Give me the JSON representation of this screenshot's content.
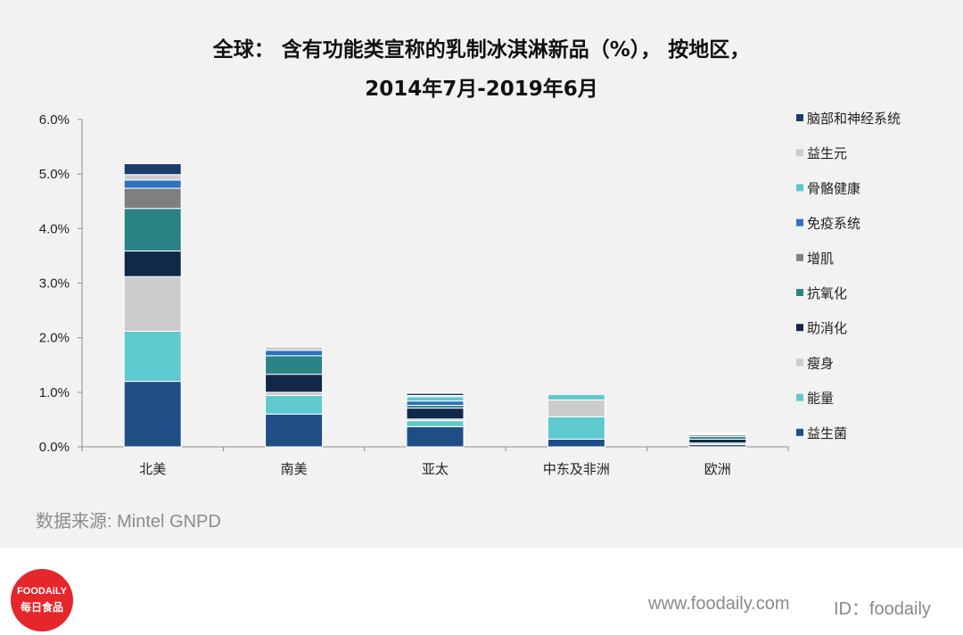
{
  "chart_data": {
    "type": "bar",
    "stacked": true,
    "title": "全球： 含有功能类宣称的乳制冰淇淋新品（%）， 按地区，",
    "subtitle": "2014年7月-2019年6月",
    "xlabel": "",
    "ylabel": "",
    "ylim": [
      0,
      6
    ],
    "yticks": [
      "0.0%",
      "1.0%",
      "2.0%",
      "3.0%",
      "4.0%",
      "5.0%",
      "6.0%"
    ],
    "categories": [
      "北美",
      "南美",
      "亚太",
      "中东及非洲",
      "欧洲"
    ],
    "series": [
      {
        "name": "益生菌",
        "color": "#1f4e87",
        "values": [
          1.2,
          0.6,
          0.37,
          0.14,
          0.04
        ]
      },
      {
        "name": "能量",
        "color": "#5ec9cf",
        "values": [
          0.92,
          0.34,
          0.11,
          0.41,
          0.0
        ]
      },
      {
        "name": "瘦身",
        "color": "#cccccc",
        "values": [
          1.0,
          0.06,
          0.03,
          0.31,
          0.03
        ]
      },
      {
        "name": "助消化",
        "color": "#12284a",
        "values": [
          0.47,
          0.33,
          0.2,
          0.0,
          0.07
        ]
      },
      {
        "name": "抗氧化",
        "color": "#2a8385",
        "values": [
          0.78,
          0.34,
          0.05,
          0.0,
          0.05
        ]
      },
      {
        "name": "增肌",
        "color": "#7f7f7f",
        "values": [
          0.37,
          0.0,
          0.0,
          0.0,
          0.03
        ]
      },
      {
        "name": "免疫系统",
        "color": "#2e72c0",
        "values": [
          0.15,
          0.1,
          0.08,
          0.0,
          0.0
        ]
      },
      {
        "name": "骨骼健康",
        "color": "#5ec9cf",
        "values": [
          0.0,
          0.0,
          0.08,
          0.1,
          0.0
        ]
      },
      {
        "name": "益生元",
        "color": "#cccccc",
        "values": [
          0.1,
          0.06,
          0.02,
          0.0,
          0.02
        ]
      },
      {
        "name": "脑部和神经系统",
        "color": "#1b3d6d",
        "values": [
          0.2,
          0.0,
          0.04,
          0.0,
          0.01
        ]
      }
    ],
    "legend_position": "right",
    "grid": false
  },
  "source_note": "数据来源: Mintel GNPD",
  "footer": {
    "website": "www.foodaily.com",
    "id_label": "ID：foodaily",
    "logo_brand": "FOODAiLY",
    "logo_cn": "每日食品"
  }
}
